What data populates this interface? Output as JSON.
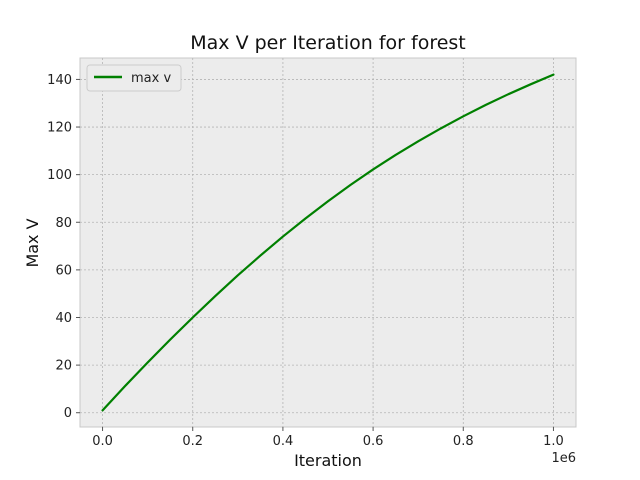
{
  "chart_data": {
    "type": "line",
    "title": "Max V per Iteration for forest",
    "xlabel": "Iteration",
    "ylabel": "Max V",
    "x_offset_label": "1e6",
    "x_scale": 1000000,
    "xlim": [
      -50000,
      1050000
    ],
    "ylim": [
      -6,
      149
    ],
    "xticks": [
      0,
      200000,
      400000,
      600000,
      800000,
      1000000
    ],
    "xtick_labels": [
      "0.0",
      "0.2",
      "0.4",
      "0.6",
      "0.8",
      "1.0"
    ],
    "yticks": [
      0,
      20,
      40,
      60,
      80,
      100,
      120,
      140
    ],
    "ytick_labels": [
      "0",
      "20",
      "40",
      "60",
      "80",
      "100",
      "120",
      "140"
    ],
    "grid": true,
    "legend_position": "upper-left",
    "series": [
      {
        "name": "max v",
        "color": "#008000",
        "x": [
          0,
          50000,
          100000,
          150000,
          200000,
          250000,
          300000,
          350000,
          400000,
          450000,
          500000,
          550000,
          600000,
          650000,
          700000,
          750000,
          800000,
          850000,
          900000,
          950000,
          1000000
        ],
        "y": [
          1.0,
          11.2,
          21.1,
          30.7,
          40.0,
          49.0,
          57.7,
          66.0,
          74.0,
          81.6,
          88.8,
          95.7,
          102.2,
          108.3,
          114.0,
          119.4,
          124.5,
          129.3,
          133.8,
          138.0,
          142.0
        ]
      }
    ]
  }
}
